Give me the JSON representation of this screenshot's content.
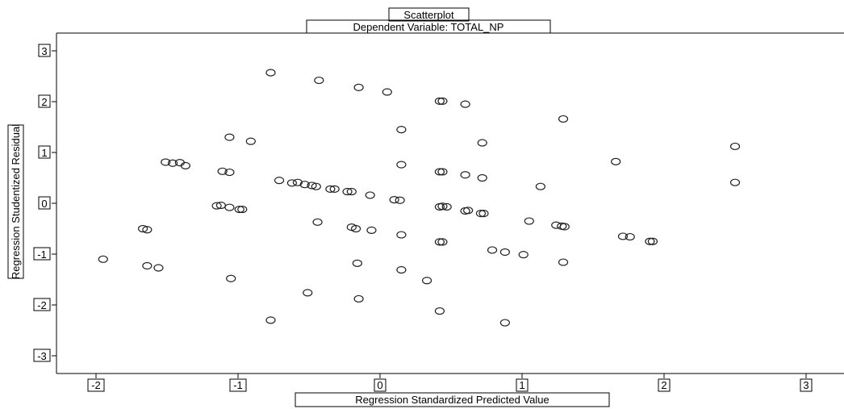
{
  "chart_data": {
    "type": "scatter",
    "title": "Scatterplot",
    "subtitle": "Dependent Variable: TOTAL_NP",
    "xlabel": "Regression Standardized Predicted Value",
    "ylabel": "Regression Studentized Residual",
    "xlim": [
      -2.3,
      3.05
    ],
    "ylim": [
      -3.2,
      3.15
    ],
    "xticks": [
      -2,
      -1,
      0,
      1,
      2,
      3
    ],
    "yticks": [
      3,
      2,
      1,
      0,
      -1,
      -2,
      -3
    ],
    "xtick_labels": [
      "-2",
      "-1",
      "0",
      "1",
      "2",
      "3"
    ],
    "ytick_labels": [
      "3",
      "2",
      "1",
      "0",
      "-1",
      "-2",
      "-3"
    ],
    "grid": false,
    "marker": "open-circle",
    "series": [
      {
        "points": [
          [
            -1.95,
            -1.1
          ],
          [
            -1.67,
            -0.5
          ],
          [
            -1.64,
            -0.52
          ],
          [
            -1.64,
            -1.23
          ],
          [
            -1.56,
            -1.27
          ],
          [
            -1.51,
            0.81
          ],
          [
            -1.46,
            0.79
          ],
          [
            -1.41,
            0.8
          ],
          [
            -1.37,
            0.74
          ],
          [
            -1.15,
            -0.05
          ],
          [
            -1.12,
            -0.04
          ],
          [
            -1.11,
            0.63
          ],
          [
            -1.06,
            0.61
          ],
          [
            -1.06,
            1.3
          ],
          [
            -1.06,
            -0.08
          ],
          [
            -1.05,
            -1.48
          ],
          [
            -0.99,
            -0.12
          ],
          [
            -0.97,
            -0.12
          ],
          [
            -0.91,
            1.22
          ],
          [
            -0.77,
            2.57
          ],
          [
            -0.77,
            -2.3
          ],
          [
            -0.71,
            0.45
          ],
          [
            -0.62,
            0.4
          ],
          [
            -0.58,
            0.41
          ],
          [
            -0.53,
            0.37
          ],
          [
            -0.51,
            -1.76
          ],
          [
            -0.48,
            0.35
          ],
          [
            -0.45,
            0.33
          ],
          [
            -0.44,
            -0.37
          ],
          [
            -0.43,
            2.42
          ],
          [
            -0.35,
            0.28
          ],
          [
            -0.32,
            0.28
          ],
          [
            -0.23,
            0.23
          ],
          [
            -0.2,
            0.23
          ],
          [
            -0.2,
            -0.47
          ],
          [
            -0.17,
            -0.5
          ],
          [
            -0.16,
            -1.18
          ],
          [
            -0.15,
            2.28
          ],
          [
            -0.15,
            -1.88
          ],
          [
            -0.07,
            0.16
          ],
          [
            -0.06,
            -0.53
          ],
          [
            0.05,
            2.19
          ],
          [
            0.1,
            0.07
          ],
          [
            0.14,
            0.06
          ],
          [
            0.15,
            1.45
          ],
          [
            0.15,
            0.76
          ],
          [
            0.15,
            -0.62
          ],
          [
            0.15,
            -1.31
          ],
          [
            0.33,
            -1.52
          ],
          [
            0.42,
            2.01
          ],
          [
            0.44,
            2.01
          ],
          [
            0.42,
            0.62
          ],
          [
            0.44,
            0.62
          ],
          [
            0.42,
            -0.07
          ],
          [
            0.44,
            -0.06
          ],
          [
            0.47,
            -0.07
          ],
          [
            0.42,
            -0.76
          ],
          [
            0.44,
            -0.76
          ],
          [
            0.42,
            -2.12
          ],
          [
            0.6,
            1.95
          ],
          [
            0.6,
            0.56
          ],
          [
            0.6,
            -0.15
          ],
          [
            0.62,
            -0.14
          ],
          [
            0.71,
            -0.2
          ],
          [
            0.73,
            -0.2
          ],
          [
            0.72,
            0.5
          ],
          [
            0.72,
            1.19
          ],
          [
            0.79,
            -0.92
          ],
          [
            0.88,
            -0.96
          ],
          [
            0.88,
            -2.35
          ],
          [
            1.01,
            -1.01
          ],
          [
            1.05,
            -0.35
          ],
          [
            1.13,
            0.33
          ],
          [
            1.24,
            -0.43
          ],
          [
            1.28,
            -0.45
          ],
          [
            1.3,
            -0.46
          ],
          [
            1.29,
            1.66
          ],
          [
            1.29,
            -1.16
          ],
          [
            1.66,
            0.82
          ],
          [
            1.71,
            -0.65
          ],
          [
            1.76,
            -0.66
          ],
          [
            1.9,
            -0.75
          ],
          [
            1.92,
            -0.75
          ],
          [
            2.5,
            1.12
          ],
          [
            2.5,
            0.41
          ]
        ]
      }
    ]
  }
}
